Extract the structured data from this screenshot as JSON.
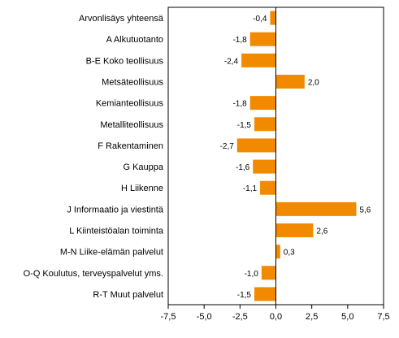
{
  "chart_data": {
    "type": "bar",
    "orientation": "horizontal",
    "title": "",
    "xlabel": "",
    "ylabel": "",
    "categories": [
      "Arvonlisäys yhteensä",
      "A Alkutuotanto",
      "B-E Koko teollisuus",
      "Metsäteollisuus",
      "Kemianteollisuus",
      "Metalliteollisuus",
      "F Rakentaminen",
      "G Kauppa",
      "H Liikenne",
      "J Informaatio ja viestintä",
      "L Kiinteistöalan toiminta",
      "M-N Liike-elämän palvelut",
      "O-Q Koulutus, terveyspalvelut yms.",
      "R-T Muut palvelut"
    ],
    "values": [
      -0.4,
      -1.8,
      -2.4,
      2.0,
      -1.8,
      -1.5,
      -2.7,
      -1.6,
      -1.1,
      5.6,
      2.6,
      0.3,
      -1.0,
      -1.5
    ],
    "value_labels": [
      "-0,4",
      "-1,8",
      "-2,4",
      "2,0",
      "-1,8",
      "-1,5",
      "-2,7",
      "-1,6",
      "-1,1",
      "5,6",
      "2,6",
      "0,3",
      "-1,0",
      "-1,5"
    ],
    "xlim": [
      -7.5,
      7.5
    ],
    "xticks": [
      -7.5,
      -5.0,
      -2.5,
      0.0,
      2.5,
      5.0,
      7.5
    ],
    "xtick_labels": [
      "-7,5",
      "-5,0",
      "-2,5",
      "0,0",
      "2,5",
      "5,0",
      "7,5"
    ],
    "grid": false,
    "legend": "none",
    "bar_color": "#f28a00",
    "axis_color": "#000000"
  }
}
